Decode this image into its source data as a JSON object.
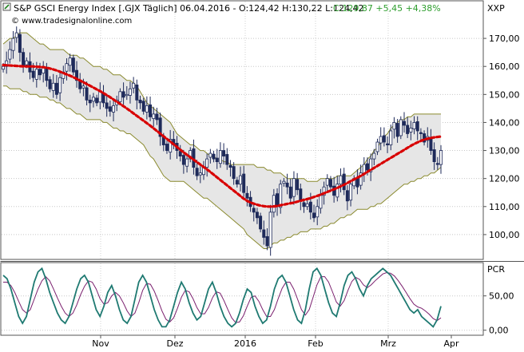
{
  "header": {
    "icon_name": "chart-symbol-icon",
    "title": "S&P GSCI Energy Index [.GJX Täglich] 06.04.2016 - O:124,42 H:130,22 L:124,42",
    "change": "C:129,87 +5,45 +4,38%",
    "change_color": "#2e9e2e"
  },
  "price_panel": {
    "label": "XXP",
    "y_ticks": [
      "170,00",
      "160,00",
      "150,00",
      "140,00",
      "130,00",
      "120,00",
      "110,00",
      "100,00"
    ]
  },
  "pcr_panel": {
    "label": "PCR",
    "y_ticks": [
      "50,00",
      "0,00"
    ]
  },
  "x_labels": [
    "Nov",
    "Dez",
    "2016",
    "Feb",
    "Mrz",
    "Apr"
  ],
  "watermark": "© www.tradesignalonline.com",
  "colors": {
    "band_fill": "#e6e6e6",
    "band_line": "#8a8a2e",
    "moving_average": "#d80000",
    "candle_up": "#ffffff",
    "candle_down": "#1e2a5a",
    "pcr_fast": "#1f7a72",
    "pcr_slow": "#7a1f6e"
  },
  "chart_data": [
    {
      "type": "candlestick",
      "title": "S&P GSCI Energy Index [.GJX Täglich]",
      "ylim": [
        92,
        178
      ],
      "x_labels": [
        "Nov",
        "Dez",
        "2016",
        "Feb",
        "Mrz",
        "Apr"
      ],
      "series": [
        {
          "name": "Close",
          "values": [
            160,
            162,
            166,
            170,
            172,
            165,
            160,
            162,
            158,
            156,
            159,
            157,
            160,
            155,
            152,
            154,
            150,
            156,
            158,
            161,
            163,
            158,
            155,
            152,
            153,
            148,
            147,
            149,
            147,
            151,
            147,
            145,
            144,
            146,
            148,
            151,
            149,
            150,
            152,
            154,
            148,
            147,
            144,
            146,
            142,
            143,
            141,
            135,
            132,
            130,
            134,
            132,
            130,
            128,
            125,
            127,
            130,
            124,
            121,
            122,
            124,
            127,
            129,
            127,
            126,
            130,
            128,
            125,
            124,
            120,
            118,
            121,
            115,
            113,
            110,
            108,
            106,
            102,
            99,
            96,
            108,
            114,
            110,
            118,
            119,
            117,
            113,
            120,
            116,
            112,
            110,
            111,
            108,
            106,
            110,
            114,
            117,
            120,
            117,
            114,
            118,
            121,
            116,
            112,
            118,
            120,
            117,
            122,
            125,
            123,
            127,
            129,
            133,
            135,
            133,
            132,
            137,
            140,
            135,
            141,
            139,
            136,
            138,
            140,
            137,
            136,
            133,
            135,
            130,
            126,
            125,
            130
          ]
        },
        {
          "name": "Bollinger upper",
          "values": [
            168,
            169,
            170,
            170,
            171,
            172,
            172,
            172,
            171,
            170,
            169,
            168,
            168,
            167,
            166,
            166,
            166,
            166,
            166,
            165,
            164,
            164,
            164,
            163,
            163,
            162,
            161,
            160,
            160,
            160,
            159,
            159,
            158,
            157,
            157,
            157,
            156,
            155,
            155,
            154,
            153,
            151,
            149,
            147,
            146,
            145,
            144,
            143,
            142,
            141,
            140,
            138,
            136,
            135,
            134,
            133,
            132,
            132,
            131,
            130,
            130,
            129,
            128,
            128,
            127,
            127,
            126,
            126,
            125,
            125,
            125,
            125,
            125,
            125,
            125,
            125,
            124,
            124,
            124,
            123,
            123,
            122,
            122,
            122,
            121,
            120,
            120,
            120,
            120,
            120,
            120,
            119,
            119,
            119,
            119,
            120,
            120,
            120,
            120,
            120,
            121,
            121,
            121,
            121,
            121,
            122,
            123,
            124,
            125,
            127,
            128,
            130,
            131,
            133,
            135,
            136,
            138,
            139,
            140,
            141,
            141,
            142,
            142,
            143,
            143,
            143,
            143,
            143,
            143,
            143,
            143,
            143
          ]
        },
        {
          "name": "Bollinger lower",
          "values": [
            153,
            153,
            152,
            152,
            152,
            152,
            151,
            151,
            150,
            150,
            150,
            149,
            149,
            149,
            148,
            148,
            147,
            147,
            146,
            145,
            145,
            144,
            143,
            143,
            142,
            141,
            141,
            141,
            141,
            141,
            140,
            140,
            139,
            138,
            138,
            137,
            137,
            136,
            136,
            135,
            134,
            133,
            132,
            130,
            128,
            127,
            125,
            123,
            121,
            120,
            119,
            119,
            119,
            119,
            119,
            118,
            117,
            116,
            115,
            114,
            113,
            113,
            112,
            111,
            110,
            109,
            108,
            107,
            106,
            105,
            104,
            103,
            102,
            100,
            99,
            98,
            97,
            96,
            95,
            95,
            96,
            97,
            97,
            98,
            98,
            99,
            99,
            100,
            100,
            101,
            101,
            101,
            102,
            102,
            102,
            102,
            103,
            103,
            104,
            104,
            105,
            106,
            106,
            107,
            107,
            108,
            109,
            109,
            109,
            109,
            110,
            110,
            111,
            111,
            112,
            113,
            114,
            115,
            116,
            117,
            118,
            118,
            119,
            119,
            120,
            120,
            121,
            121,
            122,
            122,
            123,
            124
          ]
        },
        {
          "name": "Moving average",
          "values": [
            160.5,
            160.4,
            160.3,
            160.2,
            160.1,
            160,
            160,
            160,
            159.9,
            159.8,
            159.6,
            159.3,
            158.9,
            158.4,
            157.8,
            157.2,
            156.6,
            155.9,
            155.2,
            154.4,
            153.6,
            152.8,
            152,
            151.2,
            150.3,
            149.4,
            148.4,
            147.4,
            146.4,
            145.4,
            144.3,
            143.2,
            142.1,
            141,
            139.9,
            138.8,
            137.6,
            136.4,
            135.2,
            134,
            132.8,
            131.6,
            130.4,
            129.2,
            128.1,
            127,
            125.9,
            124.8,
            123.7,
            122.6,
            121.4,
            120.2,
            119,
            117.8,
            116.6,
            115.4,
            114.2,
            113,
            112,
            111.3,
            110.8,
            110.4,
            110.1,
            110,
            110,
            110.2,
            110.5,
            110.8,
            111.1,
            111.4,
            111.8,
            112.2,
            112.6,
            113,
            113.5,
            114,
            114.6,
            115.2,
            115.8,
            116.4,
            117.1,
            117.8,
            118.6,
            119.4,
            120.2,
            121,
            121.9,
            122.8,
            123.7,
            124.6,
            125.5,
            126.4,
            127.3,
            128.2,
            129.1,
            130,
            130.9,
            131.8,
            132.6,
            133.3,
            133.9,
            134.3,
            134.6,
            134.8,
            135
          ]
        }
      ]
    },
    {
      "type": "line",
      "title": "PCR",
      "ylim": [
        -5,
        95
      ],
      "series": [
        {
          "name": "fast",
          "values": [
            80,
            75,
            60,
            40,
            20,
            10,
            20,
            45,
            70,
            85,
            90,
            75,
            55,
            40,
            25,
            15,
            10,
            20,
            40,
            60,
            75,
            80,
            70,
            50,
            30,
            20,
            35,
            55,
            65,
            50,
            30,
            15,
            10,
            20,
            45,
            70,
            80,
            70,
            50,
            30,
            15,
            5,
            5,
            15,
            35,
            55,
            70,
            60,
            40,
            25,
            15,
            20,
            40,
            60,
            70,
            55,
            35,
            20,
            10,
            5,
            10,
            25,
            45,
            60,
            55,
            35,
            20,
            10,
            15,
            35,
            60,
            75,
            80,
            70,
            50,
            30,
            15,
            10,
            30,
            60,
            85,
            90,
            80,
            60,
            40,
            25,
            20,
            40,
            65,
            80,
            85,
            75,
            60,
            50,
            65,
            75,
            80,
            85,
            90,
            85,
            80,
            70,
            60,
            50,
            40,
            30,
            25,
            30,
            20,
            15,
            10,
            5,
            15,
            35
          ]
        },
        {
          "name": "slow",
          "values": [
            70,
            70,
            65,
            55,
            42,
            30,
            25,
            30,
            45,
            60,
            72,
            78,
            72,
            60,
            47,
            35,
            25,
            20,
            25,
            37,
            52,
            64,
            72,
            70,
            60,
            46,
            38,
            40,
            50,
            55,
            50,
            40,
            28,
            20,
            25,
            40,
            58,
            68,
            67,
            57,
            43,
            28,
            16,
            12,
            18,
            32,
            48,
            58,
            56,
            46,
            33,
            24,
            24,
            33,
            47,
            56,
            54,
            43,
            30,
            18,
            11,
            12,
            21,
            35,
            48,
            50,
            42,
            30,
            20,
            20,
            30,
            46,
            61,
            70,
            70,
            60,
            45,
            30,
            22,
            30,
            48,
            66,
            78,
            78,
            70,
            56,
            41,
            35,
            43,
            58,
            71,
            77,
            74,
            66,
            62,
            66,
            72,
            77,
            82,
            84,
            83,
            79,
            72,
            64,
            55,
            46,
            38,
            34,
            32,
            28,
            23,
            17,
            14,
            18
          ]
        }
      ]
    }
  ]
}
